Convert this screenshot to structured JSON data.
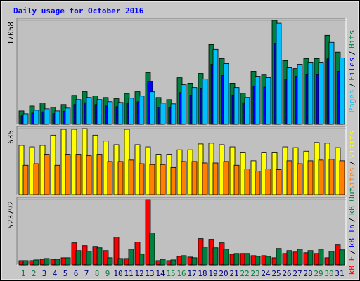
{
  "title": "Daily usage for October 2016",
  "legend_separator": "/",
  "categories": [
    "1",
    "2",
    "3",
    "4",
    "5",
    "6",
    "7",
    "8",
    "9",
    "10",
    "11",
    "12",
    "13",
    "14",
    "15",
    "16",
    "17",
    "18",
    "19",
    "20",
    "21",
    "22",
    "23",
    "24",
    "25",
    "26",
    "27",
    "28",
    "29",
    "30",
    "31"
  ],
  "category_colors": [
    "#008040",
    "#008040",
    "#000080",
    "#000080",
    "#000080",
    "#000080",
    "#000080",
    "#008040",
    "#008040",
    "#000080",
    "#000080",
    "#000080",
    "#000080",
    "#000080",
    "#008040",
    "#008040",
    "#000080",
    "#000080",
    "#000080",
    "#000080",
    "#000080",
    "#008040",
    "#008040",
    "#000080",
    "#000080",
    "#000080",
    "#000080",
    "#000080",
    "#008040",
    "#008040",
    "#000080"
  ],
  "chart_data": [
    {
      "type": "bar",
      "ylim": [
        0,
        17058
      ],
      "yticks": [
        17058
      ],
      "legend_reversed": true,
      "series": [
        {
          "name": "Hits",
          "color": "#008040",
          "values": [
            2200,
            3000,
            3500,
            2800,
            3250,
            4750,
            5350,
            4650,
            4400,
            4200,
            5000,
            5350,
            8500,
            4400,
            4050,
            7650,
            6750,
            8350,
            13100,
            10800,
            6750,
            5100,
            8700,
            8100,
            17058,
            10450,
            9150,
            10800,
            10800,
            14600,
            11850
          ]
        },
        {
          "name": "Files",
          "color": "#0000FF",
          "values": [
            1400,
            1850,
            2050,
            1750,
            2150,
            3250,
            3550,
            3250,
            3000,
            2900,
            3450,
            3700,
            7100,
            2800,
            2700,
            5200,
            4800,
            5950,
            9850,
            8000,
            4800,
            3550,
            6300,
            6100,
            13300,
            7400,
            7900,
            8150,
            8150,
            10750,
            8700
          ]
        },
        {
          "name": "Pages",
          "color": "#00C0FF",
          "values": [
            1740,
            2320,
            2552,
            2204,
            2668,
            4060,
            4408,
            4060,
            3712,
            3596,
            4292,
            4640,
            5336,
            3480,
            3364,
            6496,
            6032,
            7424,
            12296,
            9976,
            6032,
            4408,
            7888,
            7656,
            16588,
            9280,
            9860,
            10208,
            10208,
            13456,
            10904
          ]
        }
      ]
    },
    {
      "type": "bar",
      "ylim": [
        0,
        635
      ],
      "yticks": [
        635
      ],
      "legend_reversed": true,
      "series": [
        {
          "name": "Visits",
          "color": "#FFFF00",
          "values": [
            473,
            459,
            473,
            572,
            628,
            628,
            635,
            572,
            515,
            480,
            628,
            480,
            459,
            388,
            388,
            431,
            431,
            487,
            494,
            480,
            459,
            402,
            325,
            402,
            402,
            459,
            452,
            417,
            501,
            494,
            452
          ]
        },
        {
          "name": "Sites",
          "color": "#FF8000",
          "values": [
            282,
            297,
            388,
            282,
            388,
            388,
            374,
            388,
            318,
            318,
            332,
            297,
            289,
            289,
            261,
            318,
            318,
            304,
            304,
            318,
            282,
            247,
            226,
            247,
            240,
            325,
            297,
            325,
            332,
            339,
            325
          ]
        }
      ]
    },
    {
      "type": "bar",
      "ylim": [
        0,
        523792
      ],
      "yticks": [
        523792
      ],
      "legend_reversed": false,
      "series": [
        {
          "name": "kB F",
          "color": "#FF0000",
          "values": [
            34200,
            34200,
            45500,
            45500,
            56900,
            176500,
            153700,
            148000,
            113900,
            222000,
            51200,
            182200,
            523792,
            34200,
            34200,
            68300,
            62600,
            210600,
            204900,
            176500,
            85400,
            91100,
            74000,
            74000,
            56900,
            91100,
            102500,
            96800,
            91100,
            56900,
            159400
          ]
        },
        {
          "name": "kB In",
          "color": "#0000FF",
          "values": [
            2000,
            2000,
            2000,
            2000,
            2000,
            2000,
            2000,
            2000,
            2000,
            2000,
            2000,
            2000,
            2000,
            2000,
            2000,
            2000,
            2000,
            2000,
            2000,
            2000,
            2000,
            2000,
            2000,
            2000,
            2000,
            2000,
            2000,
            2000,
            2000,
            2000,
            2000
          ]
        },
        {
          "name": "kB Out",
          "color": "#008040",
          "values": [
            34200,
            39900,
            51200,
            45500,
            56900,
            113900,
            108200,
            136600,
            56900,
            51200,
            125200,
            85400,
            256200,
            45500,
            39900,
            74000,
            56900,
            142300,
            136600,
            125200,
            91100,
            91100,
            68300,
            68300,
            130900,
            113900,
            125200,
            113900,
            125200,
            108200,
            119600
          ]
        }
      ]
    }
  ]
}
